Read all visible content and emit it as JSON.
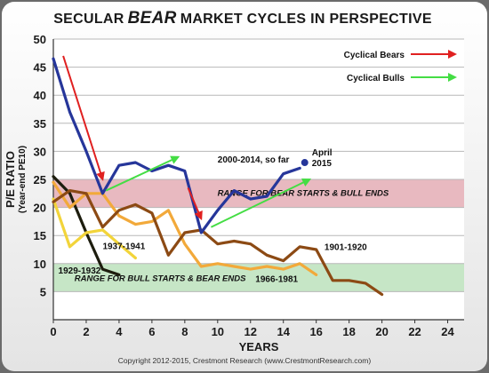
{
  "chart_data": {
    "type": "line",
    "title_prefix": "SECULAR",
    "title_emphasis": "BEAR",
    "title_suffix": "MARKET CYCLES IN PERSPECTIVE",
    "xlabel": "YEARS",
    "ylabel": "P/E RATIO",
    "ylabel_sub": "(Year-end PE10)",
    "xlim": [
      0,
      25
    ],
    "ylim": [
      0,
      50
    ],
    "xticks": [
      0,
      2,
      4,
      6,
      8,
      10,
      12,
      14,
      16,
      18,
      20,
      22,
      24
    ],
    "yticks": [
      5,
      10,
      15,
      20,
      25,
      30,
      35,
      40,
      45,
      50
    ],
    "bands": [
      {
        "y0": 20,
        "y1": 25,
        "label": "RANGE FOR BEAR STARTS & BULL ENDS",
        "color": "#e8b9c0"
      },
      {
        "y0": 5,
        "y1": 10,
        "label": "RANGE FOR BULL STARTS & BEAR ENDS",
        "color": "#c6e6c6"
      }
    ],
    "series": [
      {
        "name": "1929-1932",
        "color": "#1d1d0e",
        "x": [
          0,
          1,
          2,
          3,
          4
        ],
        "y": [
          25.5,
          22.5,
          15.5,
          9,
          8
        ]
      },
      {
        "name": "1937-1941",
        "color": "#f2d43a",
        "x": [
          0,
          1,
          2,
          3,
          4,
          5
        ],
        "y": [
          21.5,
          13,
          15.5,
          16,
          13.5,
          11
        ]
      },
      {
        "name": "1966-1981",
        "color": "#f2a93a",
        "x": [
          0,
          1,
          2,
          3,
          4,
          5,
          6,
          7,
          8,
          9,
          10,
          11,
          12,
          13,
          14,
          15,
          16
        ],
        "y": [
          24.5,
          20,
          22.5,
          22.5,
          18.5,
          17,
          17.5,
          19.5,
          13.5,
          9.5,
          10,
          9.5,
          9,
          9.5,
          9,
          10,
          8
        ]
      },
      {
        "name": "1901-1920",
        "color": "#8c4a14",
        "x": [
          0,
          1,
          2,
          3,
          4,
          5,
          6,
          7,
          8,
          9,
          10,
          11,
          12,
          13,
          14,
          15,
          16,
          17,
          18,
          19,
          20
        ],
        "y": [
          21,
          23,
          22.5,
          16.5,
          19.5,
          20.5,
          19,
          11.5,
          15.5,
          16,
          13.5,
          14,
          13.5,
          11.5,
          10.5,
          13,
          12.5,
          7,
          7,
          6.5,
          4.5
        ]
      },
      {
        "name": "2000-2014, so far",
        "color": "#26369a",
        "x": [
          0,
          1,
          2,
          3,
          4,
          5,
          6,
          7,
          8,
          9,
          10,
          11,
          12,
          13,
          14,
          15
        ],
        "y": [
          46.5,
          37,
          30,
          22.5,
          27.5,
          28,
          26.5,
          27.5,
          26.5,
          15.5,
          19.5,
          23,
          21.5,
          22,
          26,
          27
        ]
      }
    ],
    "endpoint": {
      "label": "April",
      "label2": "2015",
      "x": 15.3,
      "y": 28,
      "color": "#26369a"
    },
    "series_labels": [
      {
        "text": "1929-1932",
        "x": 0.3,
        "y": 8.2
      },
      {
        "text": "1937-1941",
        "x": 3.0,
        "y": 12.6
      },
      {
        "text": "1966-1981",
        "x": 12.3,
        "y": 6.7
      },
      {
        "text": "1901-1920",
        "x": 16.5,
        "y": 12.4
      },
      {
        "text": "2000-2014, so far",
        "x": 10.0,
        "y": 28.0
      }
    ],
    "arrows": [
      {
        "kind": "bear",
        "color": "#e02020",
        "from": [
          0.6,
          47
        ],
        "to": [
          3.0,
          25
        ]
      },
      {
        "kind": "bear",
        "color": "#e02020",
        "from": [
          8.2,
          23.5
        ],
        "to": [
          9.0,
          18
        ]
      },
      {
        "kind": "bull",
        "color": "#44dd44",
        "from": [
          3.2,
          23
        ],
        "to": [
          7.6,
          29
        ]
      },
      {
        "kind": "bull",
        "color": "#44dd44",
        "from": [
          9.6,
          16.5
        ],
        "to": [
          15.6,
          25
        ]
      }
    ],
    "legend": [
      {
        "label": "Cyclical Bears",
        "color": "#e02020"
      },
      {
        "label": "Cyclical Bulls",
        "color": "#44dd44"
      }
    ],
    "grid": "horizontal"
  },
  "copyright": "Copyright 2012-2015, Crestmont Research (www.CrestmontResearch.com)"
}
